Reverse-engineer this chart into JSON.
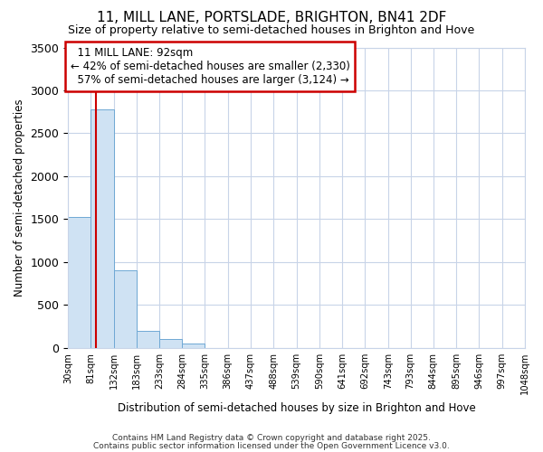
{
  "title": "11, MILL LANE, PORTSLADE, BRIGHTON, BN41 2DF",
  "subtitle": "Size of property relative to semi-detached houses in Brighton and Hove",
  "xlabel": "Distribution of semi-detached houses by size in Brighton and Hove",
  "ylabel": "Number of semi-detached properties",
  "bar_color": "#cfe2f3",
  "bar_edge_color": "#6fa8d4",
  "grid_color": "#c8d4e8",
  "background_color": "#ffffff",
  "bin_labels": [
    "30sqm",
    "81sqm",
    "132sqm",
    "183sqm",
    "233sqm",
    "284sqm",
    "335sqm",
    "386sqm",
    "437sqm",
    "488sqm",
    "539sqm",
    "590sqm",
    "641sqm",
    "692sqm",
    "743sqm",
    "793sqm",
    "844sqm",
    "895sqm",
    "946sqm",
    "997sqm",
    "1048sqm"
  ],
  "bin_edges": [
    30,
    81,
    132,
    183,
    233,
    284,
    335,
    386,
    437,
    488,
    539,
    590,
    641,
    692,
    743,
    793,
    844,
    895,
    946,
    997,
    1048
  ],
  "bar_heights": [
    1530,
    2780,
    900,
    200,
    100,
    50,
    0,
    0,
    0,
    0,
    0,
    0,
    0,
    0,
    0,
    0,
    0,
    0,
    0,
    0
  ],
  "ylim": [
    0,
    3500
  ],
  "property_size": 92,
  "pct_smaller": 42,
  "pct_larger": 57,
  "count_smaller": 2330,
  "count_larger": 3124,
  "vline_color": "#cc0000",
  "annotation_box_color": "#cc0000",
  "footer1": "Contains HM Land Registry data © Crown copyright and database right 2025.",
  "footer2": "Contains public sector information licensed under the Open Government Licence v3.0."
}
